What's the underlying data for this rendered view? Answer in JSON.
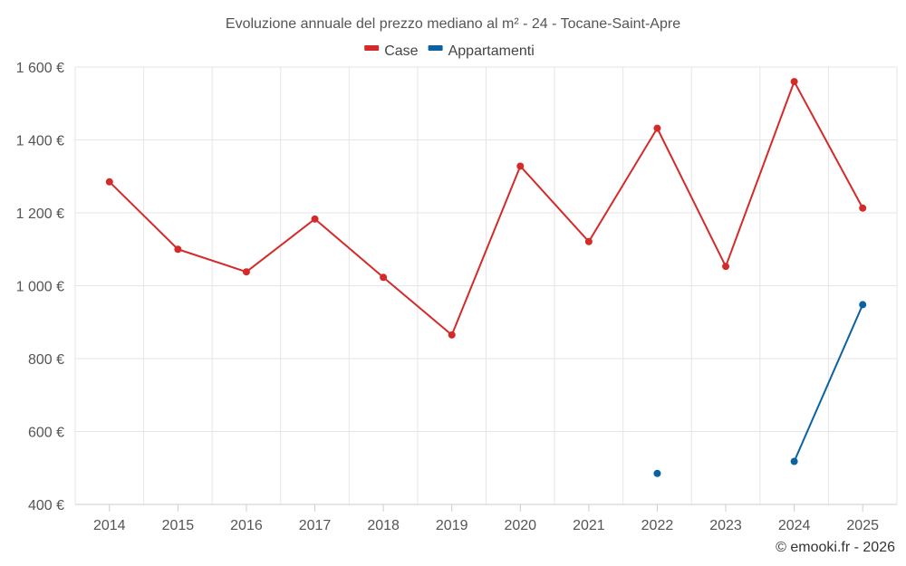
{
  "chart_data": {
    "type": "line",
    "title": "Evoluzione annuale del prezzo mediano al m² - 24 - Tocane-Saint-Apre",
    "categories": [
      "2014",
      "2015",
      "2016",
      "2017",
      "2018",
      "2019",
      "2020",
      "2021",
      "2022",
      "2023",
      "2024",
      "2025"
    ],
    "ylim": [
      400,
      1600
    ],
    "yticks": [
      400,
      600,
      800,
      1000,
      1200,
      1400,
      1600
    ],
    "ytick_labels": [
      "400 €",
      "600 €",
      "800 €",
      "1 000 €",
      "1 200 €",
      "1 400 €",
      "1 600 €"
    ],
    "series": [
      {
        "name": "Case",
        "color": "#d42a2a",
        "values": [
          1285,
          1100,
          1038,
          1183,
          1023,
          865,
          1328,
          1121,
          1432,
          1053,
          1560,
          1213
        ]
      },
      {
        "name": "Appartamenti",
        "color": "#0a63a0",
        "values": [
          null,
          null,
          null,
          null,
          null,
          null,
          null,
          null,
          485,
          null,
          518,
          948
        ]
      }
    ],
    "legend_position": "top-center",
    "credit": "© emooki.fr - 2026"
  }
}
